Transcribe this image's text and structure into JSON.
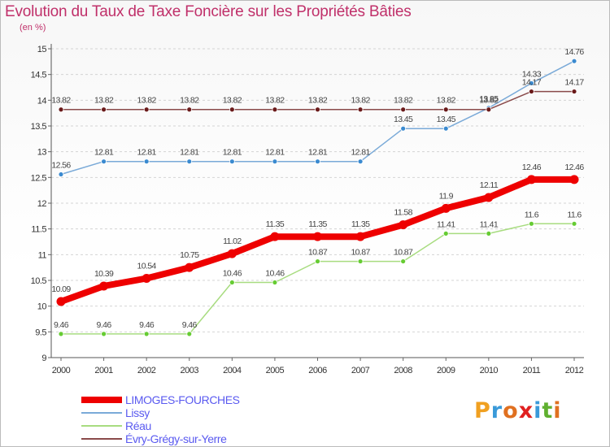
{
  "title": "Evolution du Taux de Taxe Foncière sur les Propriétés Bâties",
  "subtitle": "(en %)",
  "logo": "Proxiti",
  "chart_data": {
    "type": "line",
    "title": "Evolution du Taux de Taxe Foncière sur les Propriétés Bâties",
    "ylabel": "(en %)",
    "xlabel": "",
    "ylim": [
      9,
      15
    ],
    "ytick_step": 0.5,
    "grid": "horizontal dashed",
    "legend_position": "bottom-left",
    "x": [
      "2000",
      "2001",
      "2002",
      "2003",
      "2004",
      "2005",
      "2006",
      "2007",
      "2008",
      "2009",
      "2010",
      "2011",
      "2012"
    ],
    "series": [
      {
        "name": "LIMOGES-FOURCHES",
        "color": "#ee0000",
        "marker": "#ee0000",
        "emphasis": "thick",
        "values": [
          10.09,
          10.39,
          10.54,
          10.75,
          11.02,
          11.35,
          11.35,
          11.35,
          11.58,
          11.9,
          12.11,
          12.46,
          12.46
        ],
        "labels": [
          "10.09",
          "10.39",
          "10.54",
          "10.75",
          "11.02",
          "11.35",
          "11.35",
          "11.35",
          "11.58",
          "11.9",
          "12.11",
          "12.46",
          "12.46"
        ]
      },
      {
        "name": "Lissy",
        "color": "#7aaad8",
        "marker": "#3a8ad0",
        "emphasis": "thin",
        "values": [
          12.56,
          12.81,
          12.81,
          12.81,
          12.81,
          12.81,
          12.81,
          12.81,
          13.45,
          13.45,
          13.85,
          14.33,
          14.76
        ],
        "labels": [
          "12.56",
          "12.81",
          "12.81",
          "12.81",
          "12.81",
          "12.81",
          "12.81",
          "12.81",
          "13.45",
          "13.45",
          "13.85",
          "14.33",
          "14.76"
        ]
      },
      {
        "name": "Réau",
        "color": "#a8dc80",
        "marker": "#66cc33",
        "emphasis": "thin",
        "values": [
          9.46,
          9.46,
          9.46,
          9.46,
          10.46,
          10.46,
          10.87,
          10.87,
          10.87,
          11.41,
          11.41,
          11.6,
          11.6
        ],
        "labels": [
          "9.46",
          "9.46",
          "9.46",
          "9.46",
          "10.46",
          "10.46",
          "10.87",
          "10.87",
          "10.87",
          "11.41",
          "11.41",
          "11.6",
          "11.6"
        ]
      },
      {
        "name": "Évry-Grégy-sur-Yerre",
        "color": "#8a4a4a",
        "marker": "#6a1a1a",
        "emphasis": "thin",
        "values": [
          13.82,
          13.82,
          13.82,
          13.82,
          13.82,
          13.82,
          13.82,
          13.82,
          13.82,
          13.82,
          13.82,
          14.17,
          14.17
        ],
        "labels": [
          "13.82",
          "13.82",
          "13.82",
          "13.82",
          "13.82",
          "13.82",
          "13.82",
          "13.82",
          "13.82",
          "13.82",
          "13.82",
          "14.17",
          "14.17"
        ]
      }
    ]
  }
}
